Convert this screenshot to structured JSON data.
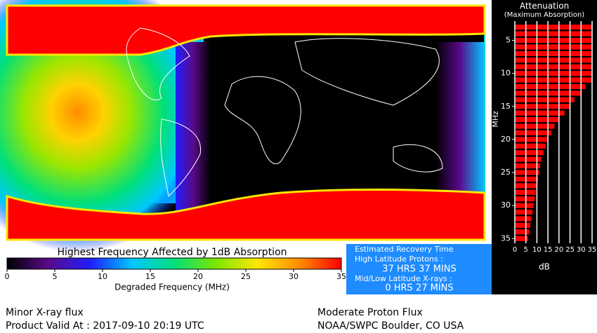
{
  "map": {
    "title": "Highest Frequency Affected by 1dB Absorption"
  },
  "colorbar": {
    "lim": [
      0,
      35
    ],
    "ticks": [
      0,
      5,
      10,
      15,
      20,
      25,
      30,
      35
    ],
    "label": "Degraded Frequency (MHz)",
    "colors": [
      "#000000",
      "#5a0a8c",
      "#1e1eff",
      "#00c8ff",
      "#00e07a",
      "#7de600",
      "#ffe600",
      "#ff8c00",
      "#ff0000"
    ]
  },
  "recovery": {
    "title": "Estimated Recovery Time",
    "protons_label": "High Latitude Protons :",
    "protons_value": "37 HRS 37 MINS",
    "xrays_label": "Mid/Low Latitude X-rays :",
    "xrays_value": "0 HRS 27 MINS"
  },
  "footer": {
    "left_1": "Minor X-ray flux",
    "left_2": "Product Valid At : 2017-09-10 20:19 UTC",
    "right_1": "Moderate Proton Flux",
    "right_2": "NOAA/SWPC Boulder, CO USA"
  },
  "chart_data": {
    "type": "hbar",
    "title": "Attenuation",
    "subtitle": "(Maximum Absorption)",
    "y_label": "MHz",
    "x_label": "dB",
    "y": [
      3,
      4,
      5,
      6,
      7,
      8,
      9,
      10,
      11,
      12,
      13,
      14,
      15,
      16,
      17,
      18,
      19,
      20,
      21,
      22,
      23,
      24,
      25,
      26,
      27,
      28,
      29,
      30,
      31,
      32,
      33,
      34,
      35
    ],
    "values": [
      35,
      35,
      35,
      35,
      35,
      35,
      35,
      35,
      35,
      32,
      30,
      27,
      25,
      22.5,
      20,
      18,
      16.5,
      15,
      14,
      13,
      12,
      11.5,
      11,
      10.5,
      10,
      9.5,
      9,
      8.5,
      8,
      7.5,
      7,
      6.5,
      6
    ],
    "color": "#ff0000",
    "xlim": [
      0,
      35
    ],
    "xticks": [
      0,
      5,
      10,
      15,
      20,
      25,
      30,
      35
    ],
    "ylim": [
      2.5,
      35.5
    ],
    "yticks": [
      5,
      10,
      15,
      20,
      25,
      30,
      35
    ],
    "grid": true
  }
}
